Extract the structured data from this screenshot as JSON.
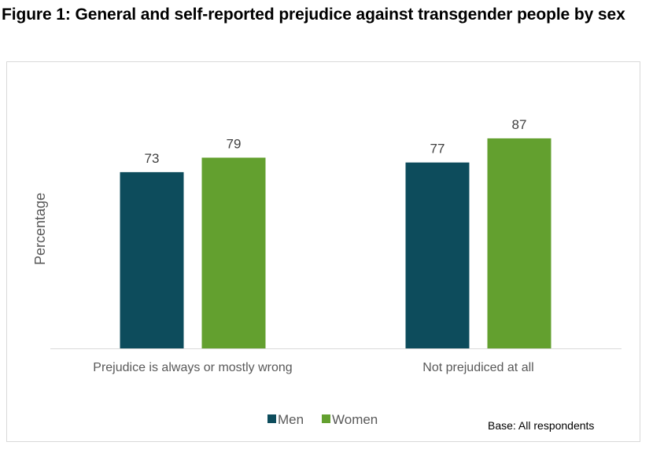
{
  "figure": {
    "title": "Figure 1: General and self-reported prejudice against transgender people by sex",
    "base_note": "Base: All respondents"
  },
  "chart_data": {
    "type": "bar",
    "title": "Figure 1: General and self-reported prejudice against transgender people by sex",
    "xlabel": "",
    "ylabel": "Percentage",
    "categories": [
      "Prejudice is always or mostly wrong",
      "Not prejudiced at all"
    ],
    "series": [
      {
        "name": "Men",
        "color": "#0d4c5c",
        "values": [
          73,
          77
        ]
      },
      {
        "name": "Women",
        "color": "#63a02f",
        "values": [
          79,
          87
        ]
      }
    ],
    "ylim": [
      0,
      100
    ],
    "grid": false,
    "data_labels": true,
    "legend": {
      "position": "bottom",
      "entries": [
        "Men",
        "Women"
      ]
    },
    "annotations": [
      "Base: All respondents"
    ]
  }
}
